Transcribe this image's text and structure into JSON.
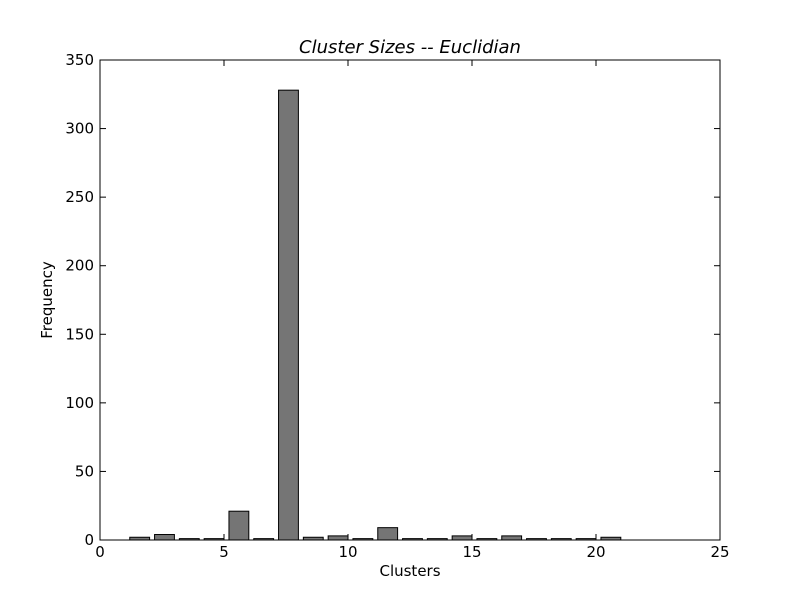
{
  "chart_data": {
    "type": "bar",
    "title": "Cluster Sizes -- Euclidian",
    "xlabel": "Clusters",
    "ylabel": "Frequency",
    "xlim": [
      0,
      25
    ],
    "ylim": [
      0,
      350
    ],
    "xticks": [
      0,
      5,
      10,
      15,
      20,
      25
    ],
    "yticks": [
      0,
      50,
      100,
      150,
      200,
      250,
      300,
      350
    ],
    "bar_width": 0.8,
    "bar_color": "#757575",
    "edge_color": "#000000",
    "grid": false,
    "bars": [
      {
        "x": 1,
        "value": 2
      },
      {
        "x": 2,
        "value": 4
      },
      {
        "x": 3,
        "value": 1
      },
      {
        "x": 4,
        "value": 1
      },
      {
        "x": 5,
        "value": 21
      },
      {
        "x": 6,
        "value": 1
      },
      {
        "x": 7,
        "value": 328
      },
      {
        "x": 8,
        "value": 2
      },
      {
        "x": 9,
        "value": 3
      },
      {
        "x": 10,
        "value": 1
      },
      {
        "x": 11,
        "value": 9
      },
      {
        "x": 12,
        "value": 1
      },
      {
        "x": 13,
        "value": 1
      },
      {
        "x": 14,
        "value": 3
      },
      {
        "x": 15,
        "value": 1
      },
      {
        "x": 16,
        "value": 3
      },
      {
        "x": 17,
        "value": 1
      },
      {
        "x": 18,
        "value": 1
      },
      {
        "x": 19,
        "value": 1
      },
      {
        "x": 20,
        "value": 2
      }
    ]
  }
}
